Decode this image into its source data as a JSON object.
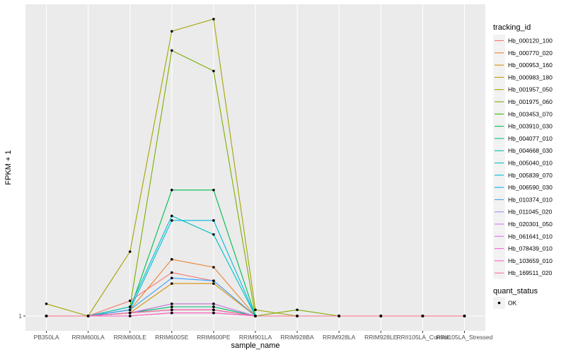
{
  "chart_data": {
    "type": "line",
    "title": "",
    "xlabel": "sample_name",
    "ylabel": "FPKM + 1",
    "log_scale_y": true,
    "y_ticks": [
      1
    ],
    "y_tick_labels": [
      "1"
    ],
    "grid": true,
    "legend_position": "right",
    "categories": [
      "PB350LA",
      "RRIM600LA",
      "RRIM600LE",
      "RRIM600SE",
      "RRIM600PE",
      "RRIM901LA",
      "RRIM928BA",
      "RRIM928LA",
      "RRIM928LE",
      "RRII105LA_Control",
      "RRII105LA_Stressed"
    ],
    "legend_title": "tracking_id",
    "series": [
      {
        "name": "Hb_000120_100",
        "color": "#F8766D",
        "values": [
          1,
          1,
          1.05,
          1.15,
          1.12,
          1,
          1,
          1,
          1,
          1,
          1
        ]
      },
      {
        "name": "Hb_000770_020",
        "color": "#EA8331",
        "values": [
          1,
          1,
          1.02,
          1.2,
          1.17,
          1,
          1,
          1,
          1,
          1,
          1
        ]
      },
      {
        "name": "Hb_000953_160",
        "color": "#D89000",
        "values": [
          1,
          1,
          1.01,
          1.11,
          1.11,
          1,
          1,
          1,
          1,
          1,
          1
        ]
      },
      {
        "name": "Hb_000983_180",
        "color": "#C09B00",
        "values": [
          1,
          1,
          1.01,
          1.04,
          1.04,
          1,
          1,
          1,
          1,
          1,
          1
        ]
      },
      {
        "name": "Hb_001957_050",
        "color": "#A3A500",
        "values": [
          1.04,
          1,
          1.23,
          2.5,
          2.6,
          1.02,
          1,
          1,
          1,
          1,
          1
        ]
      },
      {
        "name": "Hb_001975_060",
        "color": "#7CAE00",
        "values": [
          1,
          1,
          1.03,
          2.35,
          2.2,
          1,
          1.02,
          1,
          1,
          1,
          1
        ]
      },
      {
        "name": "Hb_003453_070",
        "color": "#39B600",
        "values": [
          1,
          1,
          1.01,
          1.03,
          1.03,
          1,
          1,
          1,
          1,
          1,
          1
        ]
      },
      {
        "name": "Hb_003910_030",
        "color": "#00BB4E",
        "values": [
          1,
          1,
          1.02,
          1.5,
          1.5,
          1,
          1,
          1,
          1,
          1,
          1
        ]
      },
      {
        "name": "Hb_004077_010",
        "color": "#00BF7D",
        "values": [
          1,
          1,
          1.01,
          1.03,
          1.03,
          1,
          1,
          1,
          1,
          1,
          1
        ]
      },
      {
        "name": "Hb_004668_030",
        "color": "#00C1A3",
        "values": [
          1,
          1,
          1.01,
          1.02,
          1.02,
          1,
          1,
          1,
          1,
          1,
          1
        ]
      },
      {
        "name": "Hb_005040_010",
        "color": "#00BFC4",
        "values": [
          1,
          1,
          1.03,
          1.38,
          1.3,
          1,
          1,
          1,
          1,
          1,
          1
        ]
      },
      {
        "name": "Hb_005839_070",
        "color": "#00BAE0",
        "values": [
          1,
          1,
          1.02,
          1.36,
          1.36,
          1,
          1,
          1,
          1,
          1,
          1
        ]
      },
      {
        "name": "Hb_006590_030",
        "color": "#00B0F6",
        "values": [
          1,
          1,
          1.01,
          1.02,
          1.02,
          1,
          1,
          1,
          1,
          1,
          1
        ]
      },
      {
        "name": "Hb_010374_010",
        "color": "#35A2FF",
        "values": [
          1,
          1,
          1.02,
          1.13,
          1.12,
          1,
          1,
          1,
          1,
          1,
          1
        ]
      },
      {
        "name": "Hb_011045_020",
        "color": "#9590FF",
        "values": [
          1,
          1,
          1.01,
          1.02,
          1.02,
          1,
          1,
          1,
          1,
          1,
          1
        ]
      },
      {
        "name": "Hb_020301_050",
        "color": "#C77CFF",
        "values": [
          1,
          1,
          1.01,
          1.04,
          1.04,
          1,
          1,
          1,
          1,
          1,
          1
        ]
      },
      {
        "name": "Hb_061641_010",
        "color": "#E76BF3",
        "values": [
          1,
          1,
          1.01,
          1.02,
          1.02,
          1,
          1,
          1,
          1,
          1,
          1
        ]
      },
      {
        "name": "Hb_078439_010",
        "color": "#FA62DB",
        "values": [
          1,
          1,
          1,
          1.01,
          1.01,
          1,
          1,
          1,
          1,
          1,
          1
        ]
      },
      {
        "name": "Hb_103659_010",
        "color": "#FF62BC",
        "values": [
          1,
          1,
          1,
          1.01,
          1.01,
          1,
          1,
          1,
          1,
          1,
          1
        ]
      },
      {
        "name": "Hb_169511_020",
        "color": "#FF6C91",
        "values": [
          1,
          1,
          1.01,
          1.02,
          1.02,
          1,
          1,
          1,
          1,
          1,
          1
        ]
      }
    ],
    "shape_legend_title": "quant_status",
    "shape_legend_items": [
      "OK"
    ]
  }
}
